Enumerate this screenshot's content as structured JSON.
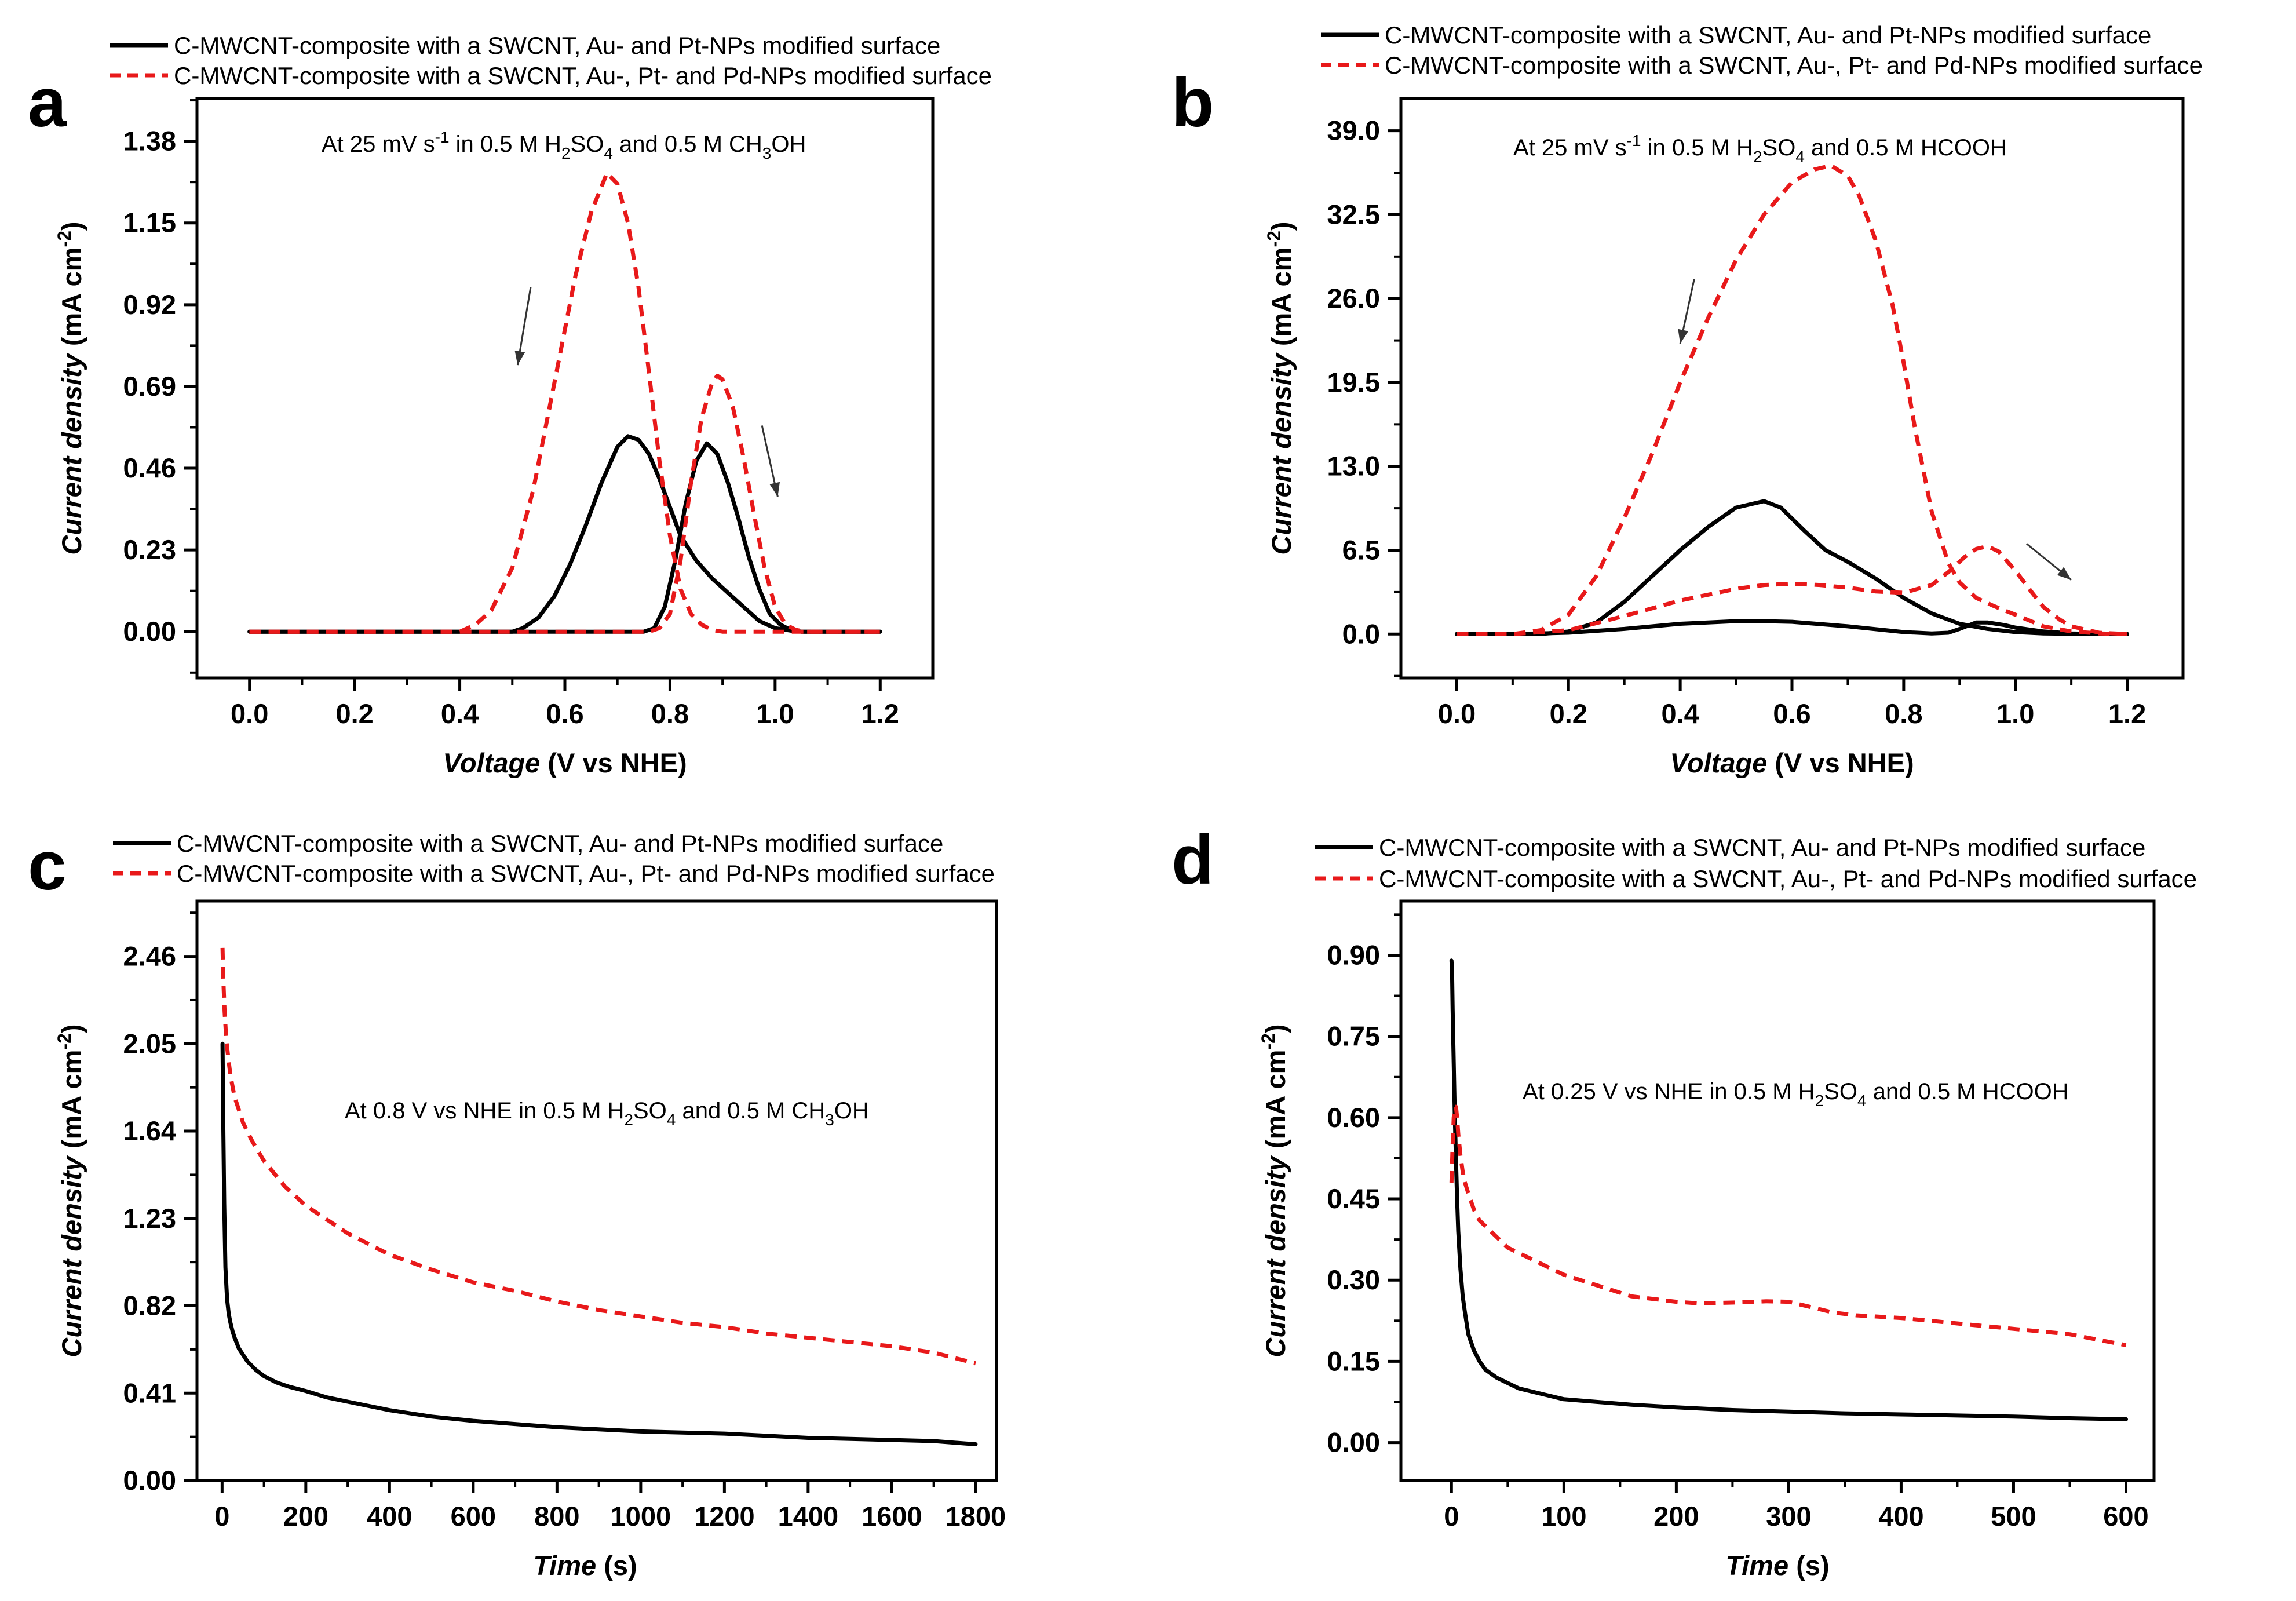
{
  "chart_data": [
    {
      "panel": "a",
      "type": "line",
      "xlabel_italic": "Voltage",
      "xlabel_rest": " (V vs NHE)",
      "ylabel_italic": "Current density",
      "ylabel_rest": " (mA cm",
      "ylabel_exp": "-2",
      "ylabel_close": ")",
      "xlim": [
        -0.1,
        1.3
      ],
      "ylim": [
        -0.13,
        1.5
      ],
      "xticks": [
        0.0,
        0.2,
        0.4,
        0.6,
        0.8,
        1.0,
        1.2
      ],
      "xtick_labels": [
        "0.0",
        "0.2",
        "0.4",
        "0.6",
        "0.8",
        "1.0",
        "1.2"
      ],
      "yticks": [
        0.0,
        0.23,
        0.46,
        0.69,
        0.92,
        1.15,
        1.38
      ],
      "ytick_labels": [
        "0.00",
        "0.23",
        "0.46",
        "0.69",
        "0.92",
        "1.15",
        "1.38"
      ],
      "annotation": {
        "p1": "At 25 mV s",
        "sup1": "-1",
        "p2": " in 0.5 M H",
        "sub1": "2",
        "p3": "SO",
        "sub2": "4",
        "p4": " and 0.5 M CH",
        "sub3": "3",
        "p5": "OH"
      },
      "legend": [
        "C-MWCNT-composite with a SWCNT, Au- and Pt-NPs modified surface",
        "C-MWCNT-composite with a SWCNT, Au-, Pt- and Pd-NPs modified surface"
      ],
      "arrows": [
        {
          "from": [
            0.535,
            0.97
          ],
          "to": [
            0.51,
            0.75
          ]
        },
        {
          "from": [
            0.975,
            0.58
          ],
          "to": [
            1.005,
            0.38
          ]
        }
      ],
      "series": [
        {
          "name": "Au-Pt forward",
          "color": "#000000",
          "dash": false,
          "x": [
            0.0,
            0.5,
            0.52,
            0.55,
            0.58,
            0.61,
            0.64,
            0.67,
            0.7,
            0.72,
            0.74,
            0.76,
            0.78,
            0.8,
            0.82,
            0.85,
            0.88,
            0.91,
            0.94,
            0.97,
            1.0,
            1.03,
            1.05,
            1.2
          ],
          "y": [
            0,
            0,
            0.01,
            0.04,
            0.1,
            0.19,
            0.3,
            0.42,
            0.52,
            0.55,
            0.54,
            0.5,
            0.43,
            0.35,
            0.27,
            0.2,
            0.15,
            0.11,
            0.07,
            0.03,
            0.01,
            0.003,
            0,
            0
          ]
        },
        {
          "name": "Au-Pt backward",
          "color": "#000000",
          "dash": false,
          "x": [
            0.0,
            0.7,
            0.75,
            0.77,
            0.79,
            0.81,
            0.83,
            0.85,
            0.87,
            0.89,
            0.91,
            0.93,
            0.95,
            0.97,
            0.99,
            1.01,
            1.03,
            1.05,
            1.2
          ],
          "y": [
            0,
            0,
            0,
            0.01,
            0.07,
            0.2,
            0.36,
            0.48,
            0.53,
            0.5,
            0.42,
            0.32,
            0.21,
            0.12,
            0.05,
            0.02,
            0.005,
            0,
            0
          ]
        },
        {
          "name": "Au-Pt-Pd forward",
          "color": "#e8191a",
          "dash": true,
          "x": [
            0.0,
            0.4,
            0.43,
            0.46,
            0.5,
            0.54,
            0.58,
            0.62,
            0.65,
            0.68,
            0.7,
            0.72,
            0.74,
            0.76,
            0.78,
            0.8,
            0.82,
            0.84,
            0.86,
            0.88,
            0.9,
            0.92,
            1.0,
            1.2
          ],
          "y": [
            0,
            0,
            0.02,
            0.06,
            0.18,
            0.4,
            0.7,
            1.0,
            1.18,
            1.29,
            1.26,
            1.15,
            0.97,
            0.73,
            0.48,
            0.27,
            0.12,
            0.05,
            0.02,
            0.005,
            0,
            0,
            0,
            0
          ]
        },
        {
          "name": "Au-Pt-Pd backward",
          "color": "#e8191a",
          "dash": true,
          "x": [
            0.0,
            0.76,
            0.78,
            0.8,
            0.82,
            0.84,
            0.86,
            0.88,
            0.89,
            0.9,
            0.92,
            0.94,
            0.96,
            0.98,
            1.0,
            1.02,
            1.04,
            1.06,
            1.2
          ],
          "y": [
            0,
            0,
            0.01,
            0.05,
            0.2,
            0.42,
            0.6,
            0.7,
            0.72,
            0.71,
            0.63,
            0.49,
            0.33,
            0.18,
            0.07,
            0.02,
            0.005,
            0,
            0
          ]
        }
      ]
    },
    {
      "panel": "b",
      "type": "line",
      "xlabel_italic": "Voltage",
      "xlabel_rest": " (V vs NHE)",
      "ylabel_italic": "Current density",
      "ylabel_rest": " (mA cm",
      "ylabel_exp": "-2",
      "ylabel_close": ")",
      "xlim": [
        -0.1,
        1.3
      ],
      "ylim": [
        -3.4,
        41.5
      ],
      "xticks": [
        0.0,
        0.2,
        0.4,
        0.6,
        0.8,
        1.0,
        1.2
      ],
      "xtick_labels": [
        "0.0",
        "0.2",
        "0.4",
        "0.6",
        "0.8",
        "1.0",
        "1.2"
      ],
      "yticks": [
        0.0,
        6.5,
        13.0,
        19.5,
        26.0,
        32.5,
        39.0
      ],
      "ytick_labels": [
        "0.0",
        "6.5",
        "13.0",
        "19.5",
        "26.0",
        "32.5",
        "39.0"
      ],
      "annotation": {
        "p1": "At 25 mV s",
        "sup1": "-1",
        "p2": " in 0.5 M H",
        "sub1": "2",
        "p3": "SO",
        "sub2": "4",
        "p4": " and 0.5 M HCOOH",
        "sub3": "",
        "p5": ""
      },
      "legend": [
        "C-MWCNT-composite with a SWCNT, Au- and Pt-NPs modified surface",
        "C-MWCNT-composite with a SWCNT, Au-, Pt- and Pd-NPs modified surface"
      ],
      "arrows": [
        {
          "from": [
            0.425,
            27.5
          ],
          "to": [
            0.4,
            22.5
          ]
        },
        {
          "from": [
            1.02,
            7.0
          ],
          "to": [
            1.1,
            4.2
          ]
        }
      ],
      "series": [
        {
          "name": "Au-Pt forward",
          "color": "#000000",
          "dash": false,
          "x": [
            0.0,
            0.15,
            0.2,
            0.25,
            0.3,
            0.35,
            0.4,
            0.45,
            0.5,
            0.55,
            0.58,
            0.62,
            0.66,
            0.7,
            0.75,
            0.8,
            0.85,
            0.9,
            0.95,
            1.0,
            1.05,
            1.1,
            1.15,
            1.2
          ],
          "y": [
            0,
            0,
            0.2,
            0.9,
            2.5,
            4.5,
            6.5,
            8.3,
            9.8,
            10.3,
            9.8,
            8.1,
            6.5,
            5.6,
            4.3,
            2.8,
            1.6,
            0.8,
            0.4,
            0.15,
            0.05,
            0.02,
            0,
            0
          ]
        },
        {
          "name": "Au-Pt backward",
          "color": "#000000",
          "dash": false,
          "x": [
            0.0,
            0.1,
            0.2,
            0.3,
            0.4,
            0.5,
            0.55,
            0.6,
            0.7,
            0.8,
            0.85,
            0.88,
            0.9,
            0.93,
            0.95,
            0.98,
            1.0,
            1.05,
            1.1,
            1.15,
            1.2
          ],
          "y": [
            0,
            0,
            0.1,
            0.4,
            0.8,
            1.0,
            1.0,
            0.95,
            0.6,
            0.15,
            0.05,
            0.1,
            0.4,
            0.9,
            0.9,
            0.7,
            0.5,
            0.2,
            0.05,
            0,
            0
          ]
        },
        {
          "name": "Au-Pt-Pd forward",
          "color": "#e8191a",
          "dash": true,
          "x": [
            0.0,
            0.1,
            0.15,
            0.2,
            0.25,
            0.3,
            0.35,
            0.4,
            0.45,
            0.5,
            0.55,
            0.6,
            0.64,
            0.67,
            0.7,
            0.72,
            0.75,
            0.78,
            0.8,
            0.82,
            0.85,
            0.88,
            0.9,
            0.93,
            0.96,
            1.0,
            1.05,
            1.1,
            1.15,
            1.2
          ],
          "y": [
            0,
            0,
            0.3,
            1.5,
            4.5,
            9.0,
            14.0,
            19.5,
            24.5,
            29.0,
            32.5,
            35.0,
            36.0,
            36.3,
            35.5,
            34.0,
            30.5,
            25.5,
            21.0,
            16.0,
            9.5,
            5.5,
            4.0,
            2.8,
            2.2,
            1.5,
            0.6,
            0.2,
            0.05,
            0
          ]
        },
        {
          "name": "Au-Pt-Pd backward",
          "color": "#e8191a",
          "dash": true,
          "x": [
            0.0,
            0.1,
            0.2,
            0.3,
            0.4,
            0.5,
            0.55,
            0.6,
            0.65,
            0.7,
            0.75,
            0.8,
            0.85,
            0.88,
            0.91,
            0.93,
            0.95,
            0.97,
            1.0,
            1.03,
            1.05,
            1.08,
            1.1,
            1.15,
            1.2
          ],
          "y": [
            0,
            0,
            0.3,
            1.4,
            2.6,
            3.5,
            3.8,
            3.9,
            3.8,
            3.6,
            3.3,
            3.2,
            3.8,
            4.8,
            6.0,
            6.6,
            6.8,
            6.4,
            4.9,
            3.2,
            2.1,
            1.1,
            0.6,
            0.1,
            0
          ]
        }
      ]
    },
    {
      "panel": "c",
      "type": "line",
      "xlabel_italic": "Time",
      "xlabel_rest": " (s)",
      "ylabel_italic": "Current density",
      "ylabel_rest": " (mA cm",
      "ylabel_exp": "-2",
      "ylabel_close": ")",
      "xlim": [
        -60,
        1850
      ],
      "ylim": [
        0,
        2.72
      ],
      "xticks": [
        0,
        200,
        400,
        600,
        800,
        1000,
        1200,
        1400,
        1600,
        1800
      ],
      "xtick_labels": [
        "0",
        "200",
        "400",
        "600",
        "800",
        "1000",
        "1200",
        "1400",
        "1600",
        "1800"
      ],
      "yticks": [
        0.0,
        0.41,
        0.82,
        1.23,
        1.64,
        2.05,
        2.46
      ],
      "ytick_labels": [
        "0.00",
        "0.41",
        "0.82",
        "1.23",
        "1.64",
        "2.05",
        "2.46"
      ],
      "annotation": {
        "p1": "At 0.8 V vs NHE in 0.5 M H",
        "sup1": "",
        "p2": "",
        "sub1": "2",
        "p3": "SO",
        "sub2": "4",
        "p4": " and 0.5 M CH",
        "sub3": "3",
        "p5": "OH"
      },
      "legend": [
        "C-MWCNT-composite with a SWCNT, Au- and Pt-NPs modified surface",
        "C-MWCNT-composite with a SWCNT, Au-, Pt- and Pd-NPs modified surface"
      ],
      "arrows": [],
      "series": [
        {
          "name": "Au-Pt",
          "color": "#000000",
          "dash": false,
          "x": [
            1,
            3,
            5,
            8,
            12,
            16,
            20,
            25,
            30,
            40,
            50,
            60,
            80,
            100,
            130,
            160,
            200,
            250,
            300,
            400,
            500,
            600,
            700,
            800,
            900,
            1000,
            1100,
            1200,
            1300,
            1400,
            1500,
            1600,
            1700,
            1800
          ],
          "y": [
            2.05,
            1.65,
            1.3,
            1.0,
            0.85,
            0.78,
            0.74,
            0.7,
            0.67,
            0.62,
            0.59,
            0.56,
            0.52,
            0.49,
            0.46,
            0.44,
            0.42,
            0.39,
            0.37,
            0.33,
            0.3,
            0.28,
            0.265,
            0.25,
            0.24,
            0.23,
            0.225,
            0.22,
            0.21,
            0.2,
            0.195,
            0.19,
            0.185,
            0.17
          ]
        },
        {
          "name": "Au-Pt-Pd",
          "color": "#e8191a",
          "dash": true,
          "x": [
            1,
            3,
            6,
            10,
            15,
            20,
            30,
            40,
            50,
            70,
            100,
            150,
            200,
            300,
            400,
            500,
            600,
            700,
            800,
            900,
            1000,
            1100,
            1200,
            1300,
            1400,
            1500,
            1600,
            1700,
            1800
          ],
          "y": [
            2.5,
            2.35,
            2.2,
            2.07,
            1.98,
            1.9,
            1.8,
            1.74,
            1.68,
            1.6,
            1.5,
            1.38,
            1.29,
            1.16,
            1.06,
            0.99,
            0.93,
            0.89,
            0.84,
            0.8,
            0.77,
            0.74,
            0.72,
            0.69,
            0.67,
            0.65,
            0.63,
            0.6,
            0.55
          ]
        }
      ]
    },
    {
      "panel": "d",
      "type": "line",
      "xlabel_italic": "Time",
      "xlabel_rest": " (s)",
      "ylabel_italic": "Current density",
      "ylabel_rest": " (mA cm",
      "ylabel_exp": "-2",
      "ylabel_close": ")",
      "xlim": [
        -45,
        625
      ],
      "ylim": [
        -0.07,
        1.0
      ],
      "xticks": [
        0,
        100,
        200,
        300,
        400,
        500,
        600
      ],
      "xtick_labels": [
        "0",
        "100",
        "200",
        "300",
        "400",
        "500",
        "600"
      ],
      "yticks": [
        0.0,
        0.15,
        0.3,
        0.45,
        0.6,
        0.75,
        0.9
      ],
      "ytick_labels": [
        "0.00",
        "0.15",
        "0.30",
        "0.45",
        "0.60",
        "0.75",
        "0.90"
      ],
      "annotation": {
        "p1": "At 0.25 V vs NHE in 0.5 M H",
        "sup1": "",
        "p2": "",
        "sub1": "2",
        "p3": "SO",
        "sub2": "4",
        "p4": " and 0.5 M HCOOH",
        "sub3": "",
        "p5": ""
      },
      "legend": [
        "C-MWCNT-composite with a SWCNT, Au- and Pt-NPs modified surface",
        "C-MWCNT-composite with a SWCNT, Au-, Pt- and Pd-NPs modified surface"
      ],
      "arrows": [],
      "series": [
        {
          "name": "Au-Pt",
          "color": "#000000",
          "dash": false,
          "x": [
            0,
            0.5,
            1,
            2,
            3,
            4,
            5,
            6,
            8,
            10,
            12,
            15,
            20,
            25,
            30,
            40,
            50,
            60,
            80,
            100,
            130,
            160,
            200,
            250,
            300,
            350,
            400,
            450,
            500,
            550,
            600
          ],
          "y": [
            0.89,
            0.87,
            0.8,
            0.7,
            0.6,
            0.52,
            0.45,
            0.39,
            0.32,
            0.27,
            0.24,
            0.2,
            0.17,
            0.15,
            0.135,
            0.12,
            0.11,
            0.1,
            0.09,
            0.08,
            0.075,
            0.07,
            0.065,
            0.06,
            0.057,
            0.054,
            0.052,
            0.05,
            0.048,
            0.045,
            0.043
          ]
        },
        {
          "name": "Au-Pt-Pd",
          "color": "#e8191a",
          "dash": true,
          "x": [
            0,
            1,
            2,
            3,
            4,
            5,
            6,
            8,
            10,
            12,
            15,
            20,
            25,
            30,
            40,
            50,
            60,
            80,
            100,
            130,
            160,
            200,
            220,
            240,
            260,
            280,
            300,
            320,
            340,
            360,
            400,
            450,
            500,
            550,
            600
          ],
          "y": [
            0.48,
            0.55,
            0.6,
            0.62,
            0.62,
            0.6,
            0.57,
            0.53,
            0.5,
            0.48,
            0.46,
            0.43,
            0.41,
            0.4,
            0.38,
            0.36,
            0.35,
            0.33,
            0.31,
            0.29,
            0.27,
            0.26,
            0.257,
            0.258,
            0.259,
            0.261,
            0.26,
            0.25,
            0.24,
            0.235,
            0.23,
            0.22,
            0.21,
            0.2,
            0.18
          ]
        }
      ]
    }
  ],
  "panels_meta": [
    "a",
    "b",
    "c",
    "d"
  ]
}
